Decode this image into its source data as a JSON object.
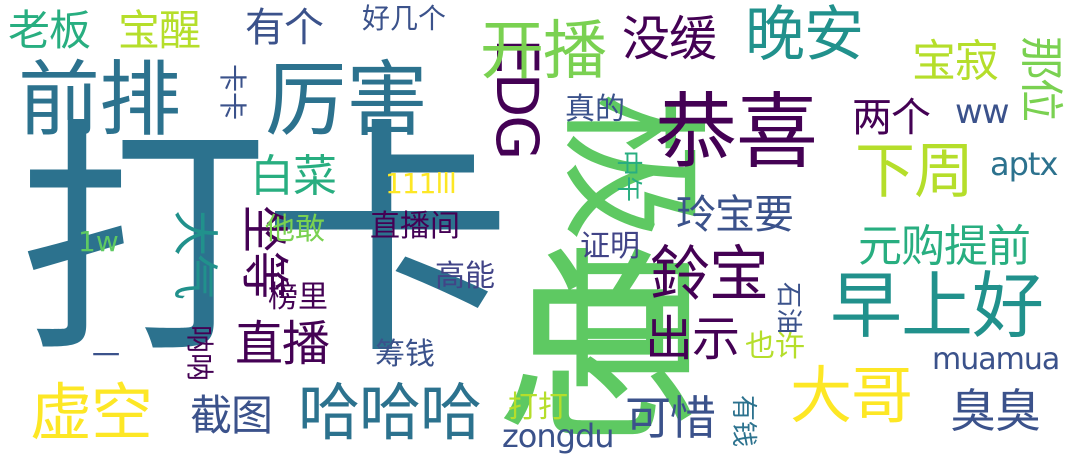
{
  "palette": {
    "dark_purple": "#440154",
    "indigo": "#3b528b",
    "slate_blue": "#414487",
    "teal_blue": "#2c728e",
    "teal": "#21918c",
    "sea_green": "#28ae80",
    "green": "#5ec962",
    "light_green": "#7ad151",
    "lime": "#b5de2b",
    "yellow": "#fde725"
  },
  "words": [
    {
      "text": "打卡",
      "color": "#2c728e",
      "orientation": "horizontal",
      "weight": 1.0
    },
    {
      "text": "总",
      "color": "#5ec962",
      "orientation": "horizontal",
      "weight": 0.9
    },
    {
      "text": "极皿",
      "color": "#5ec962",
      "orientation": "vertical",
      "weight": 0.75
    },
    {
      "text": "厉害",
      "color": "#2c728e",
      "orientation": "horizontal",
      "weight": 0.55
    },
    {
      "text": "前排",
      "color": "#2c728e",
      "orientation": "horizontal",
      "weight": 0.55
    },
    {
      "text": "恭喜",
      "color": "#440154",
      "orientation": "horizontal",
      "weight": 0.55
    },
    {
      "text": "EDG",
      "color": "#440154",
      "orientation": "vertical",
      "weight": 0.5
    },
    {
      "text": "早上好",
      "color": "#21918c",
      "orientation": "horizontal",
      "weight": 0.5
    },
    {
      "text": "开播",
      "color": "#7ad151",
      "orientation": "horizontal",
      "weight": 0.45
    },
    {
      "text": "晚安",
      "color": "#21918c",
      "orientation": "horizontal",
      "weight": 0.4
    },
    {
      "text": "下周",
      "color": "#b5de2b",
      "orientation": "horizontal",
      "weight": 0.4
    },
    {
      "text": "虚空",
      "color": "#fde725",
      "orientation": "horizontal",
      "weight": 0.4
    },
    {
      "text": "哈哈哈",
      "color": "#2c728e",
      "orientation": "horizontal",
      "weight": 0.4
    },
    {
      "text": "大哥",
      "color": "#fde725",
      "orientation": "horizontal",
      "weight": 0.4
    },
    {
      "text": "鈴宝",
      "color": "#440154",
      "orientation": "horizontal",
      "weight": 0.35
    },
    {
      "text": "直播",
      "color": "#440154",
      "orientation": "horizontal",
      "weight": 0.3
    },
    {
      "text": "没缓",
      "color": "#440154",
      "orientation": "horizontal",
      "weight": 0.3
    },
    {
      "text": "出示",
      "color": "#440154",
      "orientation": "horizontal",
      "weight": 0.3
    },
    {
      "text": "大气",
      "color": "#21918c",
      "orientation": "vertical",
      "weight": 0.28
    },
    {
      "text": "坐等",
      "color": "#440154",
      "orientation": "vertical",
      "weight": 0.28
    },
    {
      "text": "白菜",
      "color": "#28ae80",
      "orientation": "horizontal",
      "weight": 0.28
    },
    {
      "text": "宝寂",
      "color": "#b5de2b",
      "orientation": "horizontal",
      "weight": 0.28
    },
    {
      "text": "可惜",
      "color": "#3b528b",
      "orientation": "horizontal",
      "weight": 0.28
    },
    {
      "text": "臭臭",
      "color": "#3b528b",
      "orientation": "horizontal",
      "weight": 0.28
    },
    {
      "text": "截图",
      "color": "#3b528b",
      "orientation": "horizontal",
      "weight": 0.25
    },
    {
      "text": "老板",
      "color": "#28ae80",
      "orientation": "horizontal",
      "weight": 0.25
    },
    {
      "text": "宝醒",
      "color": "#b5de2b",
      "orientation": "horizontal",
      "weight": 0.25
    },
    {
      "text": "有个",
      "color": "#3b528b",
      "orientation": "horizontal",
      "weight": 0.25
    },
    {
      "text": "两个",
      "color": "#440154",
      "orientation": "horizontal",
      "weight": 0.25
    },
    {
      "text": "元购提前",
      "color": "#28ae80",
      "orientation": "horizontal",
      "weight": 0.25
    },
    {
      "text": "玲宝要",
      "color": "#3b528b",
      "orientation": "horizontal",
      "weight": 0.25
    },
    {
      "text": "那位",
      "color": "#7ad151",
      "orientation": "vertical",
      "weight": 0.22
    },
    {
      "text": "muamua",
      "color": "#3b528b",
      "orientation": "horizontal",
      "weight": 0.18
    },
    {
      "text": "aptx",
      "color": "#2c728e",
      "orientation": "horizontal",
      "weight": 0.18
    },
    {
      "text": "ww",
      "color": "#3b528b",
      "orientation": "horizontal",
      "weight": 0.18
    },
    {
      "text": "直播间",
      "color": "#440154",
      "orientation": "horizontal",
      "weight": 0.18
    },
    {
      "text": "榜里",
      "color": "#440154",
      "orientation": "horizontal",
      "weight": 0.18
    },
    {
      "text": "高能",
      "color": "#414487",
      "orientation": "horizontal",
      "weight": 0.18
    },
    {
      "text": "证明",
      "color": "#414487",
      "orientation": "horizontal",
      "weight": 0.18
    },
    {
      "text": "真的",
      "color": "#3b528b",
      "orientation": "horizontal",
      "weight": 0.18
    },
    {
      "text": "他敢",
      "color": "#7ad151",
      "orientation": "horizontal",
      "weight": 0.18
    },
    {
      "text": "筹钱",
      "color": "#3b528b",
      "orientation": "horizontal",
      "weight": 0.18
    },
    {
      "text": "好几个",
      "color": "#3b528b",
      "orientation": "horizontal",
      "weight": 0.15
    },
    {
      "text": "111lll",
      "color": "#fde725",
      "orientation": "horizontal",
      "weight": 0.15
    },
    {
      "text": "1w",
      "color": "#5ec962",
      "orientation": "horizontal",
      "weight": 0.15
    },
    {
      "text": "也许",
      "color": "#b5de2b",
      "orientation": "horizontal",
      "weight": 0.15
    },
    {
      "text": "打打",
      "color": "#b5de2b",
      "orientation": "horizontal",
      "weight": 0.15
    },
    {
      "text": "zongdu",
      "color": "#3b528b",
      "orientation": "horizontal",
      "weight": 0.15
    },
    {
      "text": "石油",
      "color": "#3b528b",
      "orientation": "vertical",
      "weight": 0.15
    },
    {
      "text": "中午",
      "color": "#28ae80",
      "orientation": "vertical",
      "weight": 0.15
    },
    {
      "text": "有钱",
      "color": "#2c728e",
      "orientation": "vertical",
      "weight": 0.15
    },
    {
      "text": "呐呐",
      "color": "#440154",
      "orientation": "vertical",
      "weight": 0.15
    },
    {
      "text": "卡卡",
      "color": "#3b528b",
      "orientation": "vertical",
      "weight": 0.15
    },
    {
      "text": "一",
      "color": "#3b528b",
      "orientation": "horizontal",
      "weight": 0.15
    }
  ]
}
